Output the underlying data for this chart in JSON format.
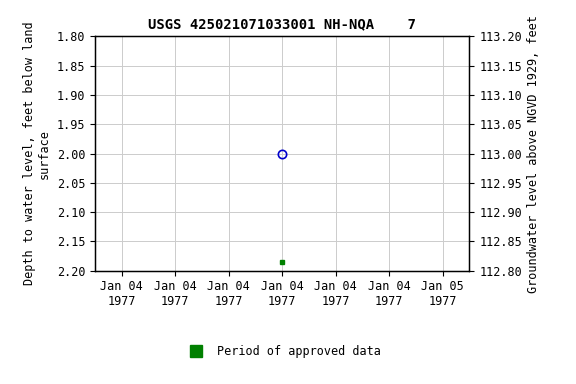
{
  "title": "USGS 425021071033001 NH-NQA    7",
  "ylabel_left": "Depth to water level, feet below land\nsurface",
  "ylabel_right": "Groundwater level above NGVD 1929, feet",
  "ylim_left": [
    2.2,
    1.8
  ],
  "ylim_right": [
    112.8,
    113.2
  ],
  "yticks_left": [
    1.8,
    1.85,
    1.9,
    1.95,
    2.0,
    2.05,
    2.1,
    2.15,
    2.2
  ],
  "yticks_right": [
    112.8,
    112.85,
    112.9,
    112.95,
    113.0,
    113.05,
    113.1,
    113.15,
    113.2
  ],
  "data_point_open": {
    "x": 3.0,
    "value": 2.0,
    "color": "#0000cc"
  },
  "data_point_filled": {
    "x": 3.0,
    "value": 2.185,
    "color": "#008000"
  },
  "xlim": [
    -0.5,
    6.5
  ],
  "xtick_positions": [
    0,
    1,
    2,
    3,
    4,
    5,
    6
  ],
  "xtick_labels": [
    "Jan 04\n1977",
    "Jan 04\n1977",
    "Jan 04\n1977",
    "Jan 04\n1977",
    "Jan 04\n1977",
    "Jan 04\n1977",
    "Jan 05\n1977"
  ],
  "legend_label": "Period of approved data",
  "legend_color": "#008000",
  "background_color": "#ffffff",
  "grid_color": "#cccccc",
  "font_family": "monospace",
  "title_fontsize": 10,
  "label_fontsize": 8.5,
  "tick_fontsize": 8.5
}
